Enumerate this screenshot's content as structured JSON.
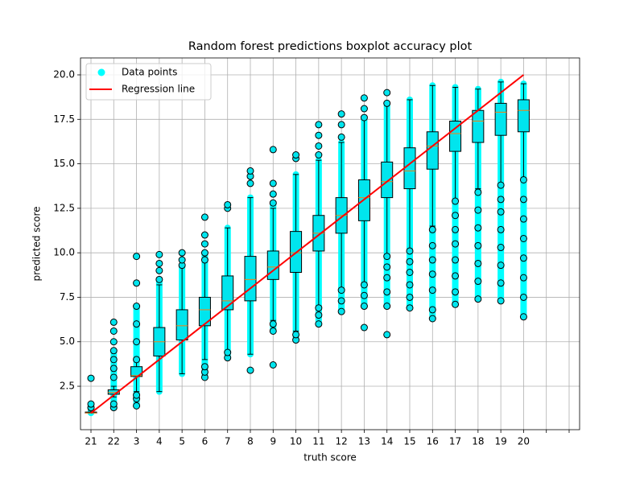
{
  "chart_data": {
    "type": "boxplot",
    "title": "Random forest predictions boxplot accuracy plot",
    "xlabel": "truth score",
    "ylabel": "predicted score",
    "xlim": [
      0.54,
      22.46
    ],
    "ylim": [
      0.06,
      20.95
    ],
    "xticks": [
      {
        "value": 1,
        "label": "21"
      },
      {
        "value": 2,
        "label": "22"
      },
      3,
      4,
      5,
      6,
      7,
      8,
      9,
      10,
      11,
      12,
      13,
      14,
      15,
      16,
      17,
      18,
      19,
      20,
      {
        "value": 21,
        "label": null
      },
      {
        "value": 22,
        "label": null
      }
    ],
    "yticks": [
      2.5,
      {
        "value": 5,
        "label": "5.0"
      },
      7.5,
      {
        "value": 10,
        "label": "10.0"
      },
      12.5,
      {
        "value": 15,
        "label": "15.0"
      },
      17.5,
      {
        "value": 20,
        "label": "20.0"
      }
    ],
    "grid": true,
    "legend": "upper left",
    "box_color": "#00e5ee",
    "median_color": "#ff7f0e",
    "x": [
      1,
      2,
      3,
      4,
      5,
      6,
      7,
      8,
      9,
      10,
      11,
      12,
      13,
      14,
      15,
      16,
      17,
      18,
      19,
      20
    ],
    "boxes": [
      {
        "whislo": 1.0,
        "q1": 1.0,
        "med": 1.0,
        "q3": 1.05,
        "whishi": 1.15,
        "fliers": [
          1.3,
          1.5,
          2.95
        ]
      },
      {
        "whislo": 1.9,
        "q1": 2.05,
        "med": 2.15,
        "q3": 2.3,
        "whishi": 2.5,
        "fliers": [
          1.3,
          1.5,
          3.0,
          3.5,
          4.0,
          4.5,
          5.0,
          5.6,
          6.1
        ]
      },
      {
        "whislo": 2.2,
        "q1": 3.05,
        "med": 3.1,
        "q3": 3.6,
        "whishi": 3.9,
        "fliers": [
          1.4,
          1.8,
          2.0,
          4.0,
          5.0,
          6.0,
          7.0,
          8.3,
          9.8
        ]
      },
      {
        "whislo": 2.2,
        "q1": 4.2,
        "med": 5.0,
        "q3": 5.8,
        "whishi": 8.2,
        "fliers": [
          8.5,
          9.0,
          9.4,
          9.9
        ]
      },
      {
        "whislo": 3.2,
        "q1": 5.1,
        "med": 5.9,
        "q3": 6.8,
        "whishi": 9.2,
        "fliers": [
          9.3,
          9.6,
          10.0
        ]
      },
      {
        "whislo": 4.0,
        "q1": 5.9,
        "med": 6.8,
        "q3": 7.5,
        "whishi": 9.5,
        "fliers": [
          3.0,
          3.3,
          3.6,
          9.6,
          10.0,
          10.5,
          11.0,
          12.0
        ]
      },
      {
        "whislo": 4.3,
        "q1": 6.8,
        "med": 7.3,
        "q3": 8.7,
        "whishi": 11.4,
        "fliers": [
          4.1,
          4.4,
          12.5,
          12.7
        ]
      },
      {
        "whislo": 4.3,
        "q1": 7.3,
        "med": 8.5,
        "q3": 9.8,
        "whishi": 13.1,
        "fliers": [
          3.4,
          13.9,
          14.3,
          14.6
        ]
      },
      {
        "whislo": 6.2,
        "q1": 8.5,
        "med": 9.2,
        "q3": 10.1,
        "whishi": 12.5,
        "fliers": [
          3.7,
          5.6,
          6.0,
          12.8,
          13.3,
          13.9,
          15.8
        ]
      },
      {
        "whislo": 5.6,
        "q1": 8.9,
        "med": 10.0,
        "q3": 11.2,
        "whishi": 14.4,
        "fliers": [
          5.1,
          5.4,
          15.3,
          15.5
        ]
      },
      {
        "whislo": 7.0,
        "q1": 10.1,
        "med": 11.1,
        "q3": 12.1,
        "whishi": 15.2,
        "fliers": [
          6.0,
          6.5,
          6.9,
          15.5,
          16.0,
          16.6,
          17.2
        ]
      },
      {
        "whislo": 8.0,
        "q1": 11.1,
        "med": 12.1,
        "q3": 13.1,
        "whishi": 16.2,
        "fliers": [
          6.7,
          7.3,
          7.9,
          16.5,
          17.2,
          17.8
        ]
      },
      {
        "whislo": 8.3,
        "q1": 11.8,
        "med": 13.1,
        "q3": 14.1,
        "whishi": 17.5,
        "fliers": [
          5.8,
          7.0,
          7.6,
          8.2,
          17.6,
          18.1,
          18.7
        ]
      },
      {
        "whislo": 9.9,
        "q1": 13.1,
        "med": 14.0,
        "q3": 15.1,
        "whishi": 18.3,
        "fliers": [
          5.4,
          7.0,
          7.8,
          8.6,
          9.2,
          9.8,
          18.4,
          19.0
        ]
      },
      {
        "whislo": 10.2,
        "q1": 13.6,
        "med": 14.6,
        "q3": 15.9,
        "whishi": 18.6,
        "fliers": [
          6.9,
          7.5,
          8.2,
          8.9,
          9.5,
          10.1
        ]
      },
      {
        "whislo": 11.5,
        "q1": 14.7,
        "med": 16.0,
        "q3": 16.8,
        "whishi": 19.4,
        "fliers": [
          6.3,
          6.8,
          7.9,
          8.8,
          9.6,
          10.4,
          11.3
        ]
      },
      {
        "whislo": 13.0,
        "q1": 15.7,
        "med": 16.7,
        "q3": 17.4,
        "whishi": 19.3,
        "fliers": [
          7.1,
          7.8,
          8.7,
          9.6,
          10.5,
          11.3,
          12.1,
          12.9
        ]
      },
      {
        "whislo": 13.6,
        "q1": 16.2,
        "med": 17.4,
        "q3": 18.0,
        "whishi": 19.2,
        "fliers": [
          7.4,
          8.4,
          9.4,
          10.4,
          11.4,
          12.4,
          13.4
        ]
      },
      {
        "whislo": 13.9,
        "q1": 16.6,
        "med": 17.9,
        "q3": 18.4,
        "whishi": 19.6,
        "fliers": [
          7.3,
          8.3,
          9.3,
          10.3,
          11.3,
          12.3,
          13.0,
          13.8
        ]
      },
      {
        "whislo": 14.2,
        "q1": 16.8,
        "med": 18.0,
        "q3": 18.6,
        "whishi": 19.5,
        "fliers": [
          6.4,
          7.5,
          8.6,
          9.7,
          10.8,
          11.9,
          13.0,
          14.1
        ]
      }
    ],
    "series": [
      {
        "name": "Data points",
        "type": "scatter",
        "color": "#00ffff",
        "low": [
          1.0,
          1.3,
          1.4,
          2.2,
          3.2,
          3.0,
          4.1,
          4.3,
          5.6,
          5.1,
          6.0,
          6.7,
          7.0,
          7.0,
          6.9,
          6.3,
          7.1,
          7.4,
          7.3,
          6.4
        ],
        "high": [
          1.5,
          4.5,
          7.0,
          8.5,
          9.3,
          10.0,
          11.4,
          13.1,
          12.8,
          14.4,
          15.2,
          16.2,
          17.5,
          18.3,
          18.6,
          19.4,
          19.3,
          19.2,
          19.6,
          19.5
        ]
      },
      {
        "name": "Regression line",
        "type": "line",
        "color": "#ff0000",
        "x": [
          1,
          20
        ],
        "values": [
          1.0,
          20.0
        ]
      }
    ]
  }
}
